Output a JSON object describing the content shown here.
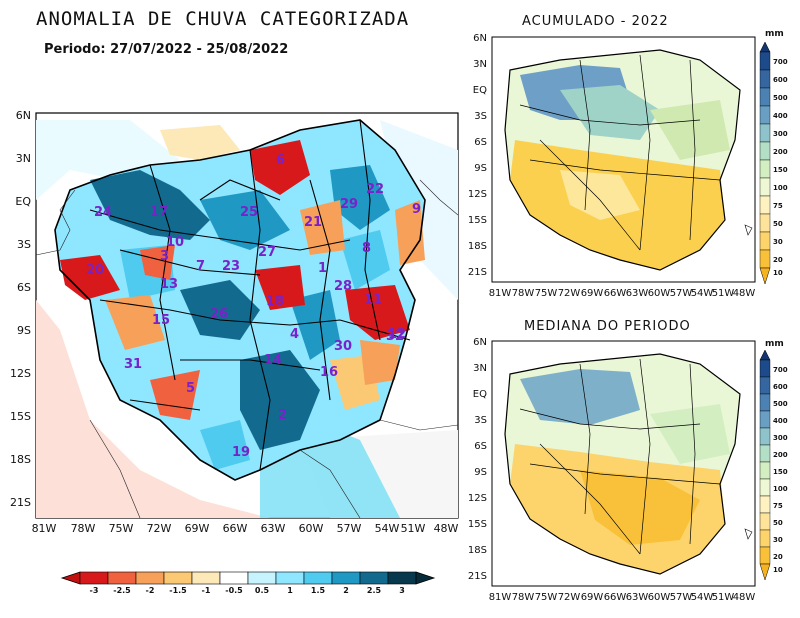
{
  "main": {
    "title": "ANOMALIA DE CHUVA CATEGORIZADA",
    "period": "Periodo: 27/07/2022 - 25/08/2022",
    "lat_labels": [
      "6N",
      "3N",
      "EQ",
      "3S",
      "6S",
      "9S",
      "12S",
      "15S",
      "18S",
      "21S"
    ],
    "lon_labels": [
      "81W",
      "78W",
      "75W",
      "72W",
      "69W",
      "66W",
      "63W",
      "60W",
      "57W",
      "54W",
      "51W",
      "48W"
    ],
    "regions": [
      "1",
      "2",
      "3",
      "4",
      "5",
      "6",
      "7",
      "8",
      "9",
      "10",
      "11",
      "12",
      "13",
      "14",
      "15",
      "16",
      "17",
      "18",
      "19",
      "20",
      "21",
      "22",
      "23",
      "24",
      "25",
      "26",
      "27",
      "28",
      "29",
      "30",
      "31",
      "32"
    ],
    "colorbar": {
      "labels": [
        "-3",
        "-2.5",
        "-2",
        "-1.5",
        "-1",
        "-0.5",
        "0.5",
        "1",
        "1.5",
        "2",
        "2.5",
        "3"
      ],
      "colors": [
        "#d7191c",
        "#f0613f",
        "#f7a05a",
        "#fbc973",
        "#fde8b8",
        "#ffffff",
        "#c7f3ff",
        "#8fe6ff",
        "#4fcbf0",
        "#1f98c4",
        "#126b8f",
        "#08384d"
      ]
    }
  },
  "acumulado": {
    "title": "ACUMULADO - 2022",
    "unit": "mm",
    "lat_labels": [
      "6N",
      "3N",
      "EQ",
      "3S",
      "6S",
      "9S",
      "12S",
      "15S",
      "18S",
      "21S"
    ],
    "lon_labels": [
      "81W",
      "78W",
      "75W",
      "72W",
      "69W",
      "66W",
      "63W",
      "60W",
      "57W",
      "54W",
      "51W",
      "48W"
    ],
    "colorbar_labels": [
      "700",
      "600",
      "500",
      "400",
      "300",
      "200",
      "150",
      "100",
      "75",
      "50",
      "30",
      "20",
      "10"
    ]
  },
  "mediana": {
    "title": "MEDIANA DO PERIODO",
    "unit": "mm",
    "lat_labels": [
      "6N",
      "3N",
      "EQ",
      "3S",
      "6S",
      "9S",
      "12S",
      "15S",
      "18S",
      "21S"
    ],
    "lon_labels": [
      "81W",
      "78W",
      "75W",
      "72W",
      "69W",
      "66W",
      "63W",
      "60W",
      "57W",
      "54W",
      "51W",
      "48W"
    ],
    "colorbar_labels": [
      "700",
      "600",
      "500",
      "400",
      "300",
      "200",
      "150",
      "100",
      "75",
      "50",
      "30",
      "20",
      "10"
    ]
  }
}
